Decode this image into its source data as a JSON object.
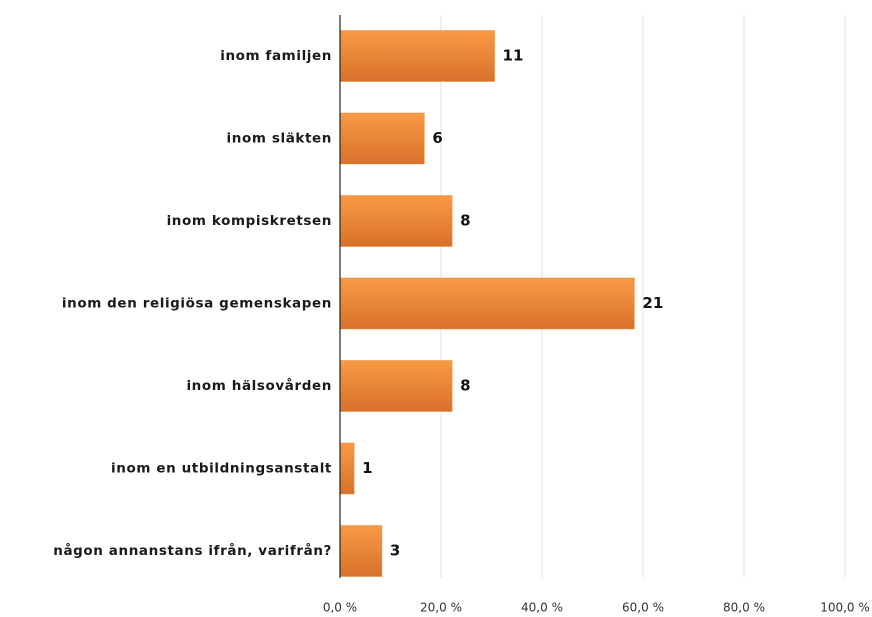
{
  "chart_data": {
    "type": "barh",
    "categories": [
      "inom familjen",
      "inom släkten",
      "inom kompiskretsen",
      "inom den religiösa gemenskapen",
      "inom hälsovården",
      "inom en utbildningsanstalt",
      "någon annanstans ifrån, varifrån?"
    ],
    "values": [
      30.6,
      16.7,
      22.2,
      58.3,
      22.2,
      2.8,
      8.3
    ],
    "counts": [
      11,
      6,
      8,
      21,
      8,
      1,
      3
    ],
    "color": "#f28a33",
    "xlim": [
      0,
      100
    ],
    "xticks": [
      {
        "value": 0,
        "label": "0,0 %"
      },
      {
        "value": 20,
        "label": "20,0 %"
      },
      {
        "value": 40,
        "label": "40,0 %"
      },
      {
        "value": 60,
        "label": "60,0 %"
      },
      {
        "value": 80,
        "label": "80,0 %"
      },
      {
        "value": 100,
        "label": "100,0 %"
      }
    ],
    "grid": true
  }
}
